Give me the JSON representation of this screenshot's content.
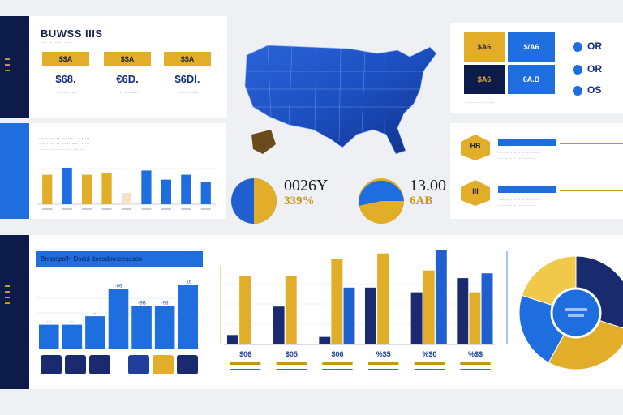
{
  "header": {
    "title": "BUWSS IIIS",
    "tiles": [
      {
        "label": "$$A",
        "value": "$68.",
        "caption": "·· ···· ····"
      },
      {
        "label": "$$A",
        "value": "€6D.",
        "caption": "·· ···· ····"
      },
      {
        "label": "$$A",
        "value": "$6DI.",
        "caption": "·· ···· ····"
      }
    ]
  },
  "kpi_grid": {
    "tiles": [
      {
        "label": "$A6"
      },
      {
        "label": "$/A6"
      },
      {
        "label": "$A6"
      },
      {
        "label": "6A.B"
      }
    ],
    "rows": [
      {
        "value": "OR"
      },
      {
        "value": "OR"
      },
      {
        "value": "OS"
      }
    ]
  },
  "mid": {
    "donut1": {
      "value": "0026Y",
      "pct": "339%"
    },
    "donut2": {
      "value": "13.00",
      "pct": "6AB"
    },
    "badges": [
      {
        "label": "HB"
      },
      {
        "label": "III"
      }
    ]
  },
  "bottom": {
    "banner": "Bnnsspo'H Dsdsi ttecsdoo:eesasos"
  },
  "colors": {
    "navy": "#0d1b4a",
    "blue": "#1f6ee0",
    "gold": "#e2ae2a"
  },
  "chart_data": [
    {
      "type": "bar",
      "title": "",
      "categories": [
        "",
        "",
        "",
        "",
        "",
        "",
        "",
        "",
        ""
      ],
      "series": [
        {
          "values": [
            42,
            52,
            42,
            45,
            16,
            48,
            35,
            42,
            32
          ]
        }
      ],
      "colors": [
        "#e2ae2a",
        "#1f6ee0",
        "#e2ae2a",
        "#e2ae2a",
        "#f3e2c6",
        "#1f6ee0",
        "#1f6ee0",
        "#1f6ee0",
        "#1f6ee0"
      ],
      "ylim": [
        0,
        60
      ]
    },
    {
      "type": "bar",
      "title": "",
      "categories": [
        "",
        "",
        "",
        "",
        "",
        "",
        ""
      ],
      "series": [
        {
          "values": [
            28,
            28,
            38,
            70,
            50,
            50,
            75
          ]
        }
      ],
      "data_labels": [
        "···",
        "···",
        "···",
        "·06",
        "·ƏB",
        "·96",
        "·16"
      ],
      "colors": [
        "#1f6ee0"
      ],
      "ylim": [
        0,
        80
      ]
    },
    {
      "type": "bar",
      "title": "",
      "categories": [
        "",
        "",
        "",
        "",
        "",
        ""
      ],
      "series": [
        {
          "values": [
            10,
            40,
            8,
            60,
            55,
            70
          ],
          "color": "#1a2a6e"
        },
        {
          "values": [
            72,
            72,
            90,
            96,
            78,
            55
          ],
          "color": "#e2ae2a"
        },
        {
          "values": [
            0,
            0,
            60,
            0,
            100,
            75
          ],
          "color": "#1f5fcf"
        }
      ],
      "data_labels": [
        "$06",
        "$05",
        "$06",
        "%$5",
        "%$0",
        "%$$"
      ],
      "ylim": [
        0,
        100
      ]
    },
    {
      "type": "pie",
      "title": "",
      "values": [
        30,
        28,
        22,
        20
      ],
      "colors": [
        "#1a2a6e",
        "#e2ae2a",
        "#1f6ee0",
        "#f0c94a"
      ]
    }
  ]
}
